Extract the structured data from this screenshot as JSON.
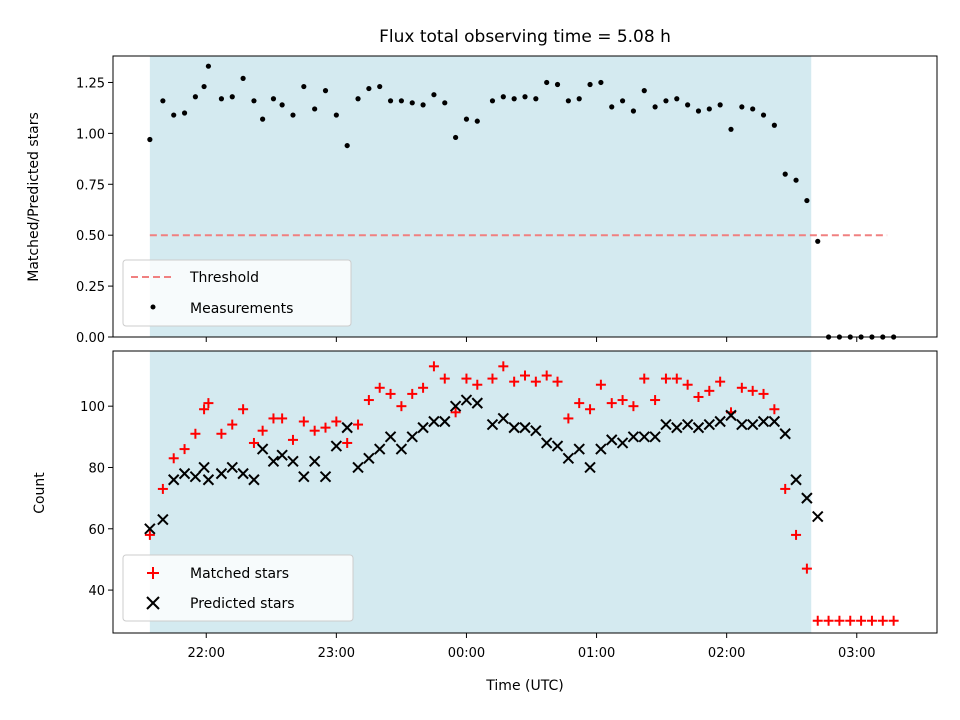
{
  "chart_data": [
    {
      "type": "scatter",
      "title": "Flux total observing time = 5.08 h",
      "xlabel": "",
      "ylabel": "Matched/Predicted stars",
      "ylim": [
        0,
        1.38
      ],
      "yticks": [
        "0.00",
        "0.25",
        "0.50",
        "0.75",
        "1.00",
        "1.25"
      ],
      "ytick_values": [
        0,
        0.25,
        0.5,
        0.75,
        1.0,
        1.25
      ],
      "xlim": [
        "21:17",
        "03:37"
      ],
      "xticks": [
        "22:00",
        "23:00",
        "00:00",
        "01:00",
        "02:00",
        "03:00"
      ],
      "shaded_span": [
        "21:34",
        "02:39"
      ],
      "shade_color": "#d4eaf0",
      "legend": {
        "position": "lower-left",
        "entries": [
          "Threshold",
          "Measurements"
        ]
      },
      "threshold": {
        "name": "Threshold",
        "value": 0.5,
        "x_range": [
          "21:34",
          "03:14"
        ],
        "color": "#f08080"
      },
      "series": [
        {
          "name": "Measurements",
          "marker": "dot",
          "color": "#000000",
          "points": [
            [
              "21:34",
              0.97
            ],
            [
              "21:40",
              1.16
            ],
            [
              "21:45",
              1.09
            ],
            [
              "21:50",
              1.1
            ],
            [
              "21:55",
              1.18
            ],
            [
              "21:59",
              1.23
            ],
            [
              "22:01",
              1.33
            ],
            [
              "22:07",
              1.17
            ],
            [
              "22:12",
              1.18
            ],
            [
              "22:17",
              1.27
            ],
            [
              "22:22",
              1.16
            ],
            [
              "22:26",
              1.07
            ],
            [
              "22:31",
              1.17
            ],
            [
              "22:35",
              1.14
            ],
            [
              "22:40",
              1.09
            ],
            [
              "22:45",
              1.23
            ],
            [
              "22:50",
              1.12
            ],
            [
              "22:55",
              1.21
            ],
            [
              "23:00",
              1.09
            ],
            [
              "23:05",
              0.94
            ],
            [
              "23:10",
              1.17
            ],
            [
              "23:15",
              1.22
            ],
            [
              "23:20",
              1.23
            ],
            [
              "23:25",
              1.16
            ],
            [
              "23:30",
              1.16
            ],
            [
              "23:35",
              1.15
            ],
            [
              "23:40",
              1.14
            ],
            [
              "23:45",
              1.19
            ],
            [
              "23:50",
              1.15
            ],
            [
              "23:55",
              0.98
            ],
            [
              "00:00",
              1.07
            ],
            [
              "00:05",
              1.06
            ],
            [
              "00:12",
              1.16
            ],
            [
              "00:17",
              1.18
            ],
            [
              "00:22",
              1.17
            ],
            [
              "00:27",
              1.18
            ],
            [
              "00:32",
              1.17
            ],
            [
              "00:37",
              1.25
            ],
            [
              "00:42",
              1.24
            ],
            [
              "00:47",
              1.16
            ],
            [
              "00:52",
              1.17
            ],
            [
              "00:57",
              1.24
            ],
            [
              "01:02",
              1.25
            ],
            [
              "01:07",
              1.13
            ],
            [
              "01:12",
              1.16
            ],
            [
              "01:17",
              1.11
            ],
            [
              "01:22",
              1.21
            ],
            [
              "01:27",
              1.13
            ],
            [
              "01:32",
              1.16
            ],
            [
              "01:37",
              1.17
            ],
            [
              "01:42",
              1.14
            ],
            [
              "01:47",
              1.11
            ],
            [
              "01:52",
              1.12
            ],
            [
              "01:57",
              1.14
            ],
            [
              "02:02",
              1.02
            ],
            [
              "02:07",
              1.13
            ],
            [
              "02:12",
              1.12
            ],
            [
              "02:17",
              1.09
            ],
            [
              "02:22",
              1.04
            ],
            [
              "02:27",
              0.8
            ],
            [
              "02:32",
              0.77
            ],
            [
              "02:37",
              0.67
            ],
            [
              "02:42",
              0.47
            ],
            [
              "02:47",
              0.0
            ],
            [
              "02:52",
              0.0
            ],
            [
              "02:57",
              0.0
            ],
            [
              "03:02",
              0.0
            ],
            [
              "03:07",
              0.0
            ],
            [
              "03:12",
              0.0
            ],
            [
              "03:17",
              0.0
            ]
          ]
        }
      ]
    },
    {
      "type": "scatter",
      "title": "",
      "xlabel": "Time (UTC)",
      "ylabel": "Count",
      "ylim": [
        26,
        118
      ],
      "yticks": [
        "40",
        "60",
        "80",
        "100"
      ],
      "ytick_values": [
        40,
        60,
        80,
        100
      ],
      "xlim": [
        "21:17",
        "03:37"
      ],
      "xticks": [
        "22:00",
        "23:00",
        "00:00",
        "01:00",
        "02:00",
        "03:00"
      ],
      "shaded_span": [
        "21:34",
        "02:39"
      ],
      "shade_color": "#d4eaf0",
      "legend": {
        "position": "lower-left",
        "entries": [
          "Matched stars",
          "Predicted stars"
        ]
      },
      "series": [
        {
          "name": "Matched stars",
          "marker": "plus",
          "color": "#ff0000",
          "points": [
            [
              "21:34",
              58
            ],
            [
              "21:40",
              73
            ],
            [
              "21:45",
              83
            ],
            [
              "21:50",
              86
            ],
            [
              "21:55",
              91
            ],
            [
              "21:59",
              99
            ],
            [
              "22:01",
              101
            ],
            [
              "22:07",
              91
            ],
            [
              "22:12",
              94
            ],
            [
              "22:17",
              99
            ],
            [
              "22:22",
              88
            ],
            [
              "22:26",
              92
            ],
            [
              "22:31",
              96
            ],
            [
              "22:35",
              96
            ],
            [
              "22:40",
              89
            ],
            [
              "22:45",
              95
            ],
            [
              "22:50",
              92
            ],
            [
              "22:55",
              93
            ],
            [
              "23:00",
              95
            ],
            [
              "23:05",
              88
            ],
            [
              "23:10",
              94
            ],
            [
              "23:15",
              102
            ],
            [
              "23:20",
              106
            ],
            [
              "23:25",
              104
            ],
            [
              "23:30",
              100
            ],
            [
              "23:35",
              104
            ],
            [
              "23:40",
              106
            ],
            [
              "23:45",
              113
            ],
            [
              "23:50",
              109
            ],
            [
              "23:55",
              98
            ],
            [
              "00:00",
              109
            ],
            [
              "00:05",
              107
            ],
            [
              "00:12",
              109
            ],
            [
              "00:17",
              113
            ],
            [
              "00:22",
              108
            ],
            [
              "00:27",
              110
            ],
            [
              "00:32",
              108
            ],
            [
              "00:37",
              110
            ],
            [
              "00:42",
              108
            ],
            [
              "00:47",
              96
            ],
            [
              "00:52",
              101
            ],
            [
              "00:57",
              99
            ],
            [
              "01:02",
              107
            ],
            [
              "01:07",
              101
            ],
            [
              "01:12",
              102
            ],
            [
              "01:17",
              100
            ],
            [
              "01:22",
              109
            ],
            [
              "01:27",
              102
            ],
            [
              "01:32",
              109
            ],
            [
              "01:37",
              109
            ],
            [
              "01:42",
              107
            ],
            [
              "01:47",
              103
            ],
            [
              "01:52",
              105
            ],
            [
              "01:57",
              108
            ],
            [
              "02:02",
              98
            ],
            [
              "02:07",
              106
            ],
            [
              "02:12",
              105
            ],
            [
              "02:17",
              104
            ],
            [
              "02:22",
              99
            ],
            [
              "02:27",
              73
            ],
            [
              "02:32",
              58
            ],
            [
              "02:37",
              47
            ],
            [
              "02:42",
              30
            ],
            [
              "02:47",
              30
            ],
            [
              "02:52",
              30
            ],
            [
              "02:57",
              30
            ],
            [
              "03:02",
              30
            ],
            [
              "03:07",
              30
            ],
            [
              "03:12",
              30
            ],
            [
              "03:17",
              30
            ]
          ]
        },
        {
          "name": "Predicted stars",
          "marker": "x",
          "color": "#000000",
          "points": [
            [
              "21:34",
              60
            ],
            [
              "21:40",
              63
            ],
            [
              "21:45",
              76
            ],
            [
              "21:50",
              78
            ],
            [
              "21:55",
              77
            ],
            [
              "21:59",
              80
            ],
            [
              "22:01",
              76
            ],
            [
              "22:07",
              78
            ],
            [
              "22:12",
              80
            ],
            [
              "22:17",
              78
            ],
            [
              "22:22",
              76
            ],
            [
              "22:26",
              86
            ],
            [
              "22:31",
              82
            ],
            [
              "22:35",
              84
            ],
            [
              "22:40",
              82
            ],
            [
              "22:45",
              77
            ],
            [
              "22:50",
              82
            ],
            [
              "22:55",
              77
            ],
            [
              "23:00",
              87
            ],
            [
              "23:05",
              93
            ],
            [
              "23:10",
              80
            ],
            [
              "23:15",
              83
            ],
            [
              "23:20",
              86
            ],
            [
              "23:25",
              90
            ],
            [
              "23:30",
              86
            ],
            [
              "23:35",
              90
            ],
            [
              "23:40",
              93
            ],
            [
              "23:45",
              95
            ],
            [
              "23:50",
              95
            ],
            [
              "23:55",
              100
            ],
            [
              "00:00",
              102
            ],
            [
              "00:05",
              101
            ],
            [
              "00:12",
              94
            ],
            [
              "00:17",
              96
            ],
            [
              "00:22",
              93
            ],
            [
              "00:27",
              93
            ],
            [
              "00:32",
              92
            ],
            [
              "00:37",
              88
            ],
            [
              "00:42",
              87
            ],
            [
              "00:47",
              83
            ],
            [
              "00:52",
              86
            ],
            [
              "00:57",
              80
            ],
            [
              "01:02",
              86
            ],
            [
              "01:07",
              89
            ],
            [
              "01:12",
              88
            ],
            [
              "01:17",
              90
            ],
            [
              "01:22",
              90
            ],
            [
              "01:27",
              90
            ],
            [
              "01:32",
              94
            ],
            [
              "01:37",
              93
            ],
            [
              "01:42",
              94
            ],
            [
              "01:47",
              93
            ],
            [
              "01:52",
              94
            ],
            [
              "01:57",
              95
            ],
            [
              "02:02",
              97
            ],
            [
              "02:07",
              94
            ],
            [
              "02:12",
              94
            ],
            [
              "02:17",
              95
            ],
            [
              "02:22",
              95
            ],
            [
              "02:27",
              91
            ],
            [
              "02:32",
              76
            ],
            [
              "02:37",
              70
            ],
            [
              "02:42",
              64
            ]
          ]
        }
      ]
    }
  ]
}
